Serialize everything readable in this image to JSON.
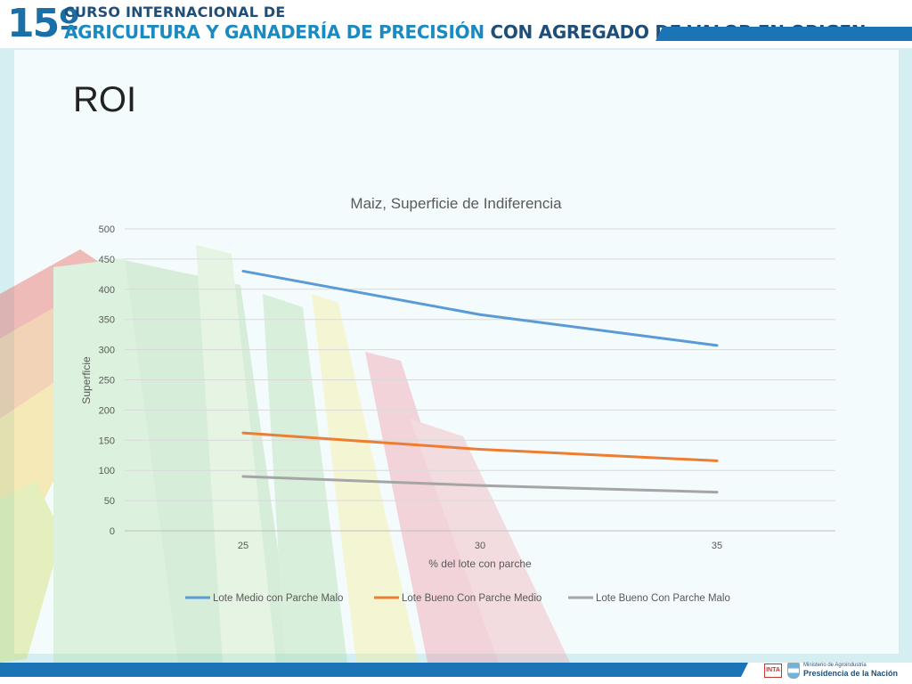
{
  "header": {
    "number": "15º",
    "line1": "CURSO INTERNACIONAL DE",
    "line2a": "AGRICULTURA Y GANADERÍA DE PRECISIÓN",
    "line2b": "CON AGREGADO DE VALOR EN ORIGEN"
  },
  "slide": {
    "title": "ROI"
  },
  "footer": {
    "inta": "INTA",
    "ministry": "Ministerio de Agroindustria",
    "presidency": "Presidencia de la Nación"
  },
  "colors": {
    "accent": "#1a74b5",
    "series": [
      "#5b9bd5",
      "#ed7d31",
      "#a5a5a5"
    ]
  },
  "chart_data": {
    "type": "line",
    "title": "Maiz, Superficie de Indiferencia",
    "xlabel": "% del lote con parche",
    "ylabel": "Superficie",
    "categories": [
      "25",
      "30",
      "35"
    ],
    "ylim": [
      0,
      500
    ],
    "yticks": [
      "0",
      "50",
      "100",
      "150",
      "200",
      "250",
      "300",
      "350",
      "400",
      "450",
      "500"
    ],
    "grid": true,
    "legend": "bottom",
    "series": [
      {
        "name": "Lote Medio con Parche Malo",
        "values": [
          430,
          358,
          307
        ],
        "color": "#5b9bd5"
      },
      {
        "name": "Lote Bueno Con Parche Medio",
        "values": [
          162,
          135,
          116
        ],
        "color": "#ed7d31"
      },
      {
        "name": "Lote Bueno Con Parche Malo",
        "values": [
          90,
          75,
          64
        ],
        "color": "#a5a5a5"
      }
    ]
  }
}
